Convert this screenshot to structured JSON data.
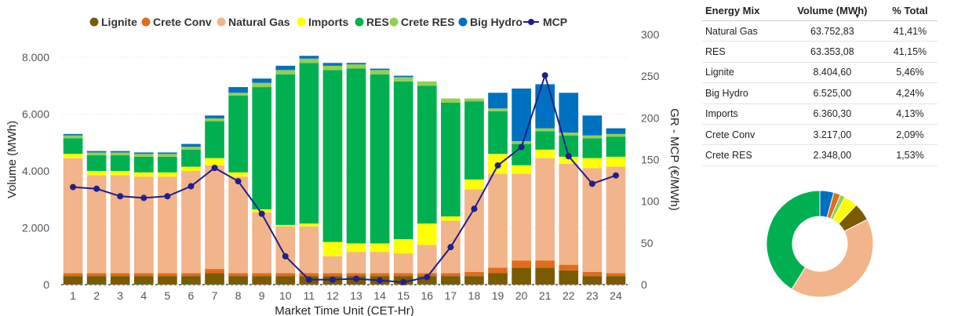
{
  "legend": [
    {
      "name": "Lignite",
      "color": "#7a5b00",
      "kind": "dot"
    },
    {
      "name": "Crete Conv",
      "color": "#e06c1c",
      "kind": "dot"
    },
    {
      "name": "Natural Gas",
      "color": "#f2b48b",
      "kind": "dot"
    },
    {
      "name": "Imports",
      "color": "#ffff00",
      "kind": "dot"
    },
    {
      "name": "RES",
      "color": "#00b050",
      "kind": "dot"
    },
    {
      "name": "Crete RES",
      "color": "#92d050",
      "kind": "dot"
    },
    {
      "name": "Big Hydro",
      "color": "#0070c0",
      "kind": "dot"
    },
    {
      "name": "MCP",
      "color": "#1f1f8f",
      "kind": "line"
    }
  ],
  "chart_data": {
    "type": "bar",
    "stacked": true,
    "xlabel": "Market Time Unit (CET-Hr)",
    "ylabel": "Volume (MWh)",
    "y2label": "GR - MCP (€/MWh)",
    "ylim": [
      0,
      8800
    ],
    "y2lim": [
      0,
      300
    ],
    "yticks": [
      "0",
      "2.000",
      "4.000",
      "6.000",
      "8.000"
    ],
    "y2ticks": [
      "0",
      "50",
      "100",
      "150",
      "200",
      "250",
      "300"
    ],
    "categories": [
      "1",
      "2",
      "3",
      "4",
      "5",
      "6",
      "7",
      "8",
      "9",
      "10",
      "11",
      "12",
      "13",
      "14",
      "15",
      "16",
      "17",
      "18",
      "19",
      "20",
      "21",
      "22",
      "23",
      "24"
    ],
    "series": [
      {
        "name": "Lignite",
        "color": "#7a5b00",
        "values": [
          300,
          300,
          300,
          300,
          300,
          300,
          400,
          300,
          300,
          300,
          300,
          300,
          300,
          300,
          300,
          300,
          300,
          300,
          400,
          600,
          600,
          500,
          300,
          300
        ]
      },
      {
        "name": "Crete Conv",
        "color": "#e06c1c",
        "values": [
          100,
          100,
          100,
          100,
          100,
          100,
          150,
          100,
          100,
          100,
          100,
          100,
          100,
          100,
          100,
          100,
          100,
          150,
          200,
          250,
          250,
          200,
          150,
          100
        ]
      },
      {
        "name": "Natural Gas",
        "color": "#f2b48b",
        "values": [
          4050,
          3450,
          3450,
          3400,
          3400,
          3600,
          3650,
          3400,
          2150,
          1650,
          1650,
          600,
          750,
          750,
          700,
          1000,
          1850,
          2900,
          3300,
          3050,
          3600,
          3550,
          3650,
          3750
        ]
      },
      {
        "name": "Imports",
        "color": "#ffff00",
        "values": [
          150,
          150,
          150,
          150,
          150,
          150,
          250,
          150,
          100,
          50,
          100,
          500,
          300,
          300,
          500,
          750,
          150,
          350,
          700,
          300,
          300,
          250,
          350,
          350
        ]
      },
      {
        "name": "RES",
        "color": "#00b050",
        "values": [
          550,
          550,
          550,
          550,
          550,
          600,
          1300,
          2700,
          4300,
          5300,
          5650,
          6050,
          6150,
          5950,
          5550,
          4850,
          4000,
          2750,
          1500,
          750,
          650,
          750,
          700,
          700
        ]
      },
      {
        "name": "Crete RES",
        "color": "#92d050",
        "values": [
          100,
          100,
          100,
          100,
          100,
          100,
          100,
          100,
          150,
          150,
          150,
          150,
          150,
          150,
          150,
          150,
          150,
          100,
          100,
          100,
          100,
          100,
          100,
          100
        ]
      },
      {
        "name": "Big Hydro",
        "color": "#0070c0",
        "values": [
          50,
          50,
          50,
          50,
          50,
          100,
          100,
          200,
          150,
          150,
          100,
          100,
          50,
          50,
          50,
          0,
          0,
          0,
          550,
          1850,
          1550,
          1400,
          700,
          200
        ]
      }
    ],
    "line": {
      "name": "MCP",
      "axis": "y2",
      "color": "#1f1f8f",
      "values": [
        117,
        115,
        106,
        104,
        106,
        118,
        140,
        124,
        85,
        34,
        6,
        6,
        7,
        5,
        3,
        9,
        45,
        91,
        143,
        165,
        251,
        154,
        121,
        131
      ]
    }
  },
  "energy_mix": {
    "headers": [
      "Energy Mix",
      "Volume (MWh)",
      "% Total"
    ],
    "sort_icon": "sort-descending-icon",
    "rows": [
      {
        "name": "Natural Gas",
        "volume": "63.752,83",
        "pct": "41,41%"
      },
      {
        "name": "RES",
        "volume": "63.353,08",
        "pct": "41,15%"
      },
      {
        "name": "Lignite",
        "volume": "8.404,60",
        "pct": "5,46%"
      },
      {
        "name": "Big Hydro",
        "volume": "6.525,00",
        "pct": "4,24%"
      },
      {
        "name": "Imports",
        "volume": "6.360,30",
        "pct": "4,13%"
      },
      {
        "name": "Crete Conv",
        "volume": "3.217,00",
        "pct": "2,09%"
      },
      {
        "name": "Crete RES",
        "volume": "2.348,00",
        "pct": "1,53%"
      }
    ]
  },
  "donut": {
    "slices": [
      {
        "name": "Big Hydro",
        "value": 4.24,
        "color": "#0070c0"
      },
      {
        "name": "Crete Conv",
        "value": 2.09,
        "color": "#e06c1c"
      },
      {
        "name": "Crete RES",
        "value": 1.53,
        "color": "#92d050"
      },
      {
        "name": "Imports",
        "value": 4.13,
        "color": "#ffff00"
      },
      {
        "name": "Lignite",
        "value": 5.46,
        "color": "#7a5b00"
      },
      {
        "name": "Natural Gas",
        "value": 41.41,
        "color": "#f2b48b"
      },
      {
        "name": "RES",
        "value": 41.15,
        "color": "#00b050"
      }
    ]
  }
}
